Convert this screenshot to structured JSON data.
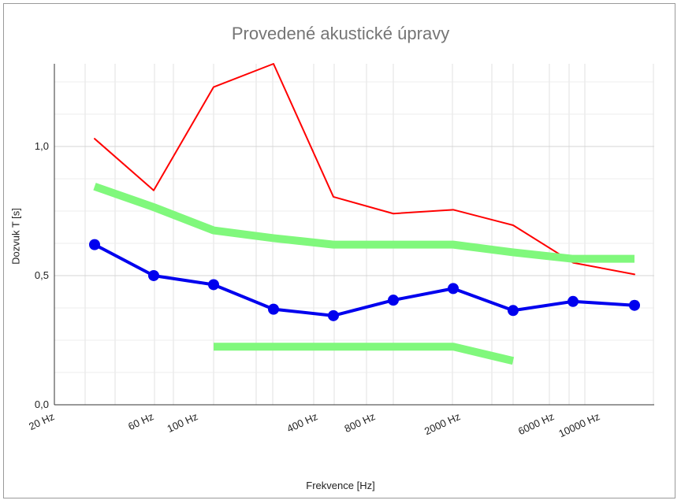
{
  "chart_data": {
    "type": "line",
    "title": "Provedené akustické úpravy",
    "xlabel": "Frekvence [Hz]",
    "ylabel": "Dozvuk T [s]",
    "x_tick_labels": [
      "20 Hz",
      "60 Hz",
      "100 Hz",
      "400 Hz",
      "800 Hz",
      "2000 Hz",
      "6000 Hz",
      "10000 Hz"
    ],
    "y_tick_labels": [
      "0,0",
      "0,5",
      "1,0"
    ],
    "ylim": [
      0,
      1.32
    ],
    "grid": true,
    "legend": "none",
    "x_positions": [
      1.0,
      2.0,
      3.0,
      4.0,
      5.0,
      6.0,
      7.0,
      8.0,
      9.0,
      10.0
    ],
    "series": [
      {
        "color": "#ff0000",
        "style": "thin-line",
        "points": [
          [
            1.0,
            1.03
          ],
          [
            2.0,
            0.83
          ],
          [
            3.0,
            1.23
          ],
          [
            4.0,
            1.32
          ],
          [
            5.0,
            0.805
          ],
          [
            6.0,
            0.74
          ],
          [
            7.0,
            0.755
          ],
          [
            8.0,
            0.695
          ],
          [
            9.0,
            0.55
          ],
          [
            10.0,
            0.505
          ]
        ]
      },
      {
        "color": "#80f87c",
        "style": "thick-line",
        "points": [
          [
            1.0,
            0.845
          ],
          [
            2.0,
            0.765
          ],
          [
            3.0,
            0.675
          ],
          [
            4.0,
            0.645
          ],
          [
            5.0,
            0.62
          ],
          [
            6.0,
            0.62
          ],
          [
            7.0,
            0.62
          ],
          [
            8.0,
            0.59
          ],
          [
            9.0,
            0.565
          ],
          [
            10.0,
            0.565
          ]
        ]
      },
      {
        "color": "#80f87c",
        "style": "thick-line",
        "points": [
          [
            3.0,
            0.225
          ],
          [
            7.0,
            0.225
          ],
          [
            8.0,
            0.17
          ]
        ]
      },
      {
        "color": "#0000ee",
        "style": "line-markers",
        "points": [
          [
            1.0,
            0.62
          ],
          [
            2.0,
            0.5
          ],
          [
            3.0,
            0.465
          ],
          [
            4.0,
            0.37
          ],
          [
            5.0,
            0.345
          ],
          [
            6.0,
            0.405
          ],
          [
            7.0,
            0.45
          ],
          [
            8.0,
            0.365
          ],
          [
            9.0,
            0.4
          ],
          [
            10.0,
            0.385
          ]
        ]
      }
    ]
  }
}
